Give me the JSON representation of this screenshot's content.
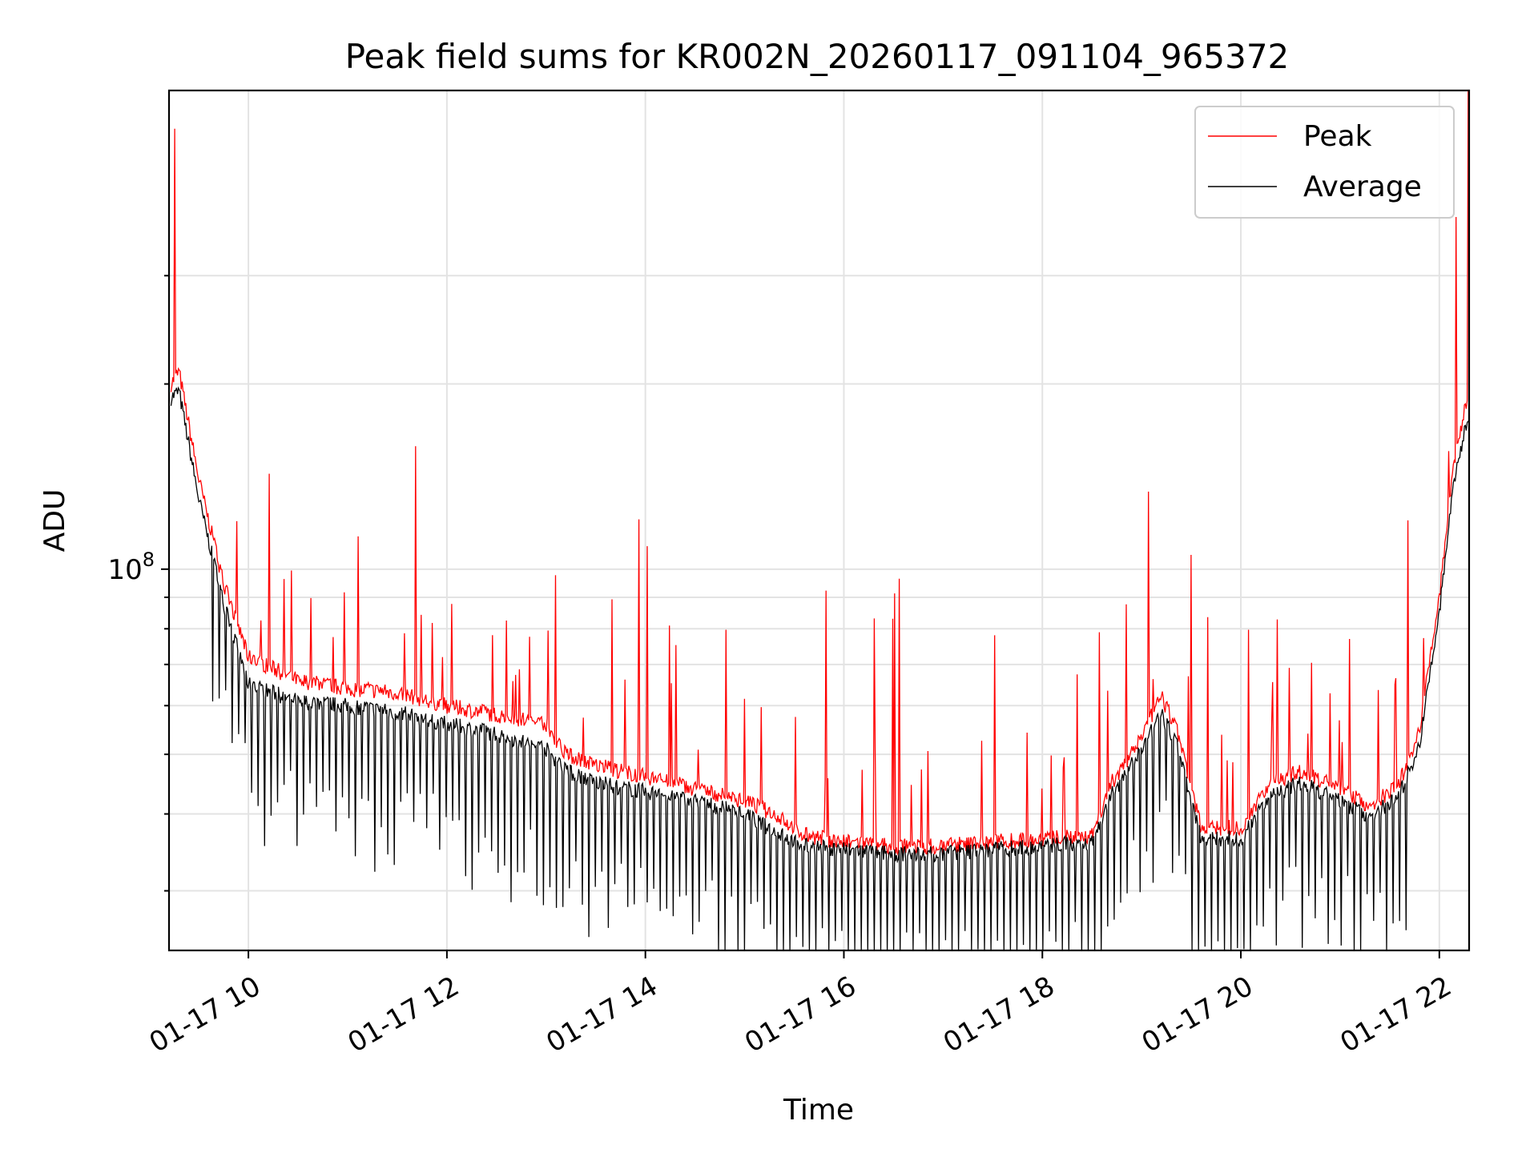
{
  "chart_data": {
    "type": "line",
    "title": "Peak field sums for KR002N_20260117_091104_965372",
    "xlabel": "Time",
    "ylabel": "ADU",
    "yscale": "log",
    "xlim": [
      9.2,
      22.3
    ],
    "ylim": [
      24000000,
      600000000
    ],
    "x_ticks": [
      {
        "value": 10,
        "label": "01-17 10"
      },
      {
        "value": 12,
        "label": "01-17 12"
      },
      {
        "value": 14,
        "label": "01-17 14"
      },
      {
        "value": 16,
        "label": "01-17 16"
      },
      {
        "value": 18,
        "label": "01-17 18"
      },
      {
        "value": 20,
        "label": "01-17 20"
      },
      {
        "value": 22,
        "label": "01-17 22"
      }
    ],
    "y_major_ticks": [
      {
        "value": 100000000,
        "base": "10",
        "exp": "8"
      }
    ],
    "y_minor_ticks": [
      30000000,
      40000000,
      50000000,
      60000000,
      70000000,
      80000000,
      90000000,
      200000000,
      300000000
    ],
    "grid": true,
    "legend": {
      "position": "top-right",
      "entries": [
        "Peak",
        "Average"
      ]
    },
    "series": [
      {
        "name": "Peak",
        "color": "#ff0000",
        "x": [
          9.22,
          9.3,
          9.5,
          9.75,
          10.0,
          10.5,
          11.0,
          11.5,
          12.0,
          12.5,
          13.0,
          13.2,
          13.5,
          14.0,
          14.5,
          15.0,
          15.3,
          15.6,
          16.0,
          16.5,
          17.0,
          17.5,
          18.0,
          18.5,
          18.7,
          18.9,
          19.2,
          19.35,
          19.6,
          20.0,
          20.3,
          20.6,
          21.0,
          21.3,
          21.6,
          21.8,
          22.0,
          22.15,
          22.28
        ],
        "y": [
          200000000,
          210000000,
          140000000,
          95000000,
          72000000,
          66000000,
          64000000,
          63000000,
          60000000,
          58000000,
          56000000,
          50000000,
          48000000,
          46000000,
          44000000,
          42000000,
          40000000,
          37000000,
          36000000,
          35500000,
          35500000,
          36000000,
          36500000,
          37000000,
          45000000,
          50000000,
          62000000,
          55000000,
          38000000,
          38000000,
          45000000,
          47000000,
          44000000,
          41000000,
          45000000,
          55000000,
          90000000,
          150000000,
          190000000
        ]
      },
      {
        "name": "Average",
        "color": "#000000",
        "x": [
          9.22,
          9.3,
          9.5,
          9.75,
          10.0,
          10.5,
          11.0,
          11.5,
          12.0,
          12.5,
          13.0,
          13.2,
          13.5,
          14.0,
          14.5,
          15.0,
          15.3,
          15.6,
          16.0,
          16.5,
          17.0,
          17.5,
          18.0,
          18.5,
          18.7,
          18.9,
          19.2,
          19.35,
          19.6,
          20.0,
          20.3,
          20.6,
          21.0,
          21.3,
          21.6,
          21.8,
          22.0,
          22.15,
          22.28
        ],
        "y": [
          190000000,
          195000000,
          130000000,
          88000000,
          65000000,
          61000000,
          60000000,
          58500000,
          56000000,
          54000000,
          51000000,
          47000000,
          45000000,
          43500000,
          42000000,
          40000000,
          37500000,
          35500000,
          35000000,
          34500000,
          34500000,
          35000000,
          35500000,
          36000000,
          43000000,
          48000000,
          58000000,
          52000000,
          36500000,
          36500000,
          43000000,
          45000000,
          42000000,
          39500000,
          43000000,
          52000000,
          85000000,
          140000000,
          175000000
        ]
      }
    ]
  }
}
